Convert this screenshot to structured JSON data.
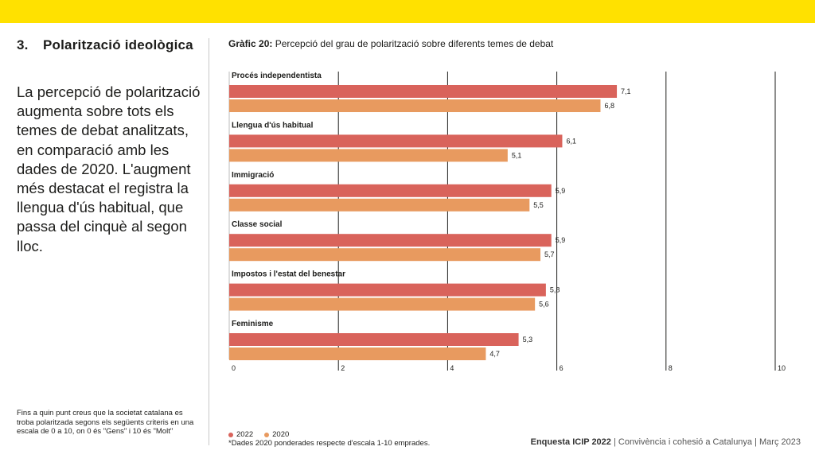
{
  "section": {
    "number": "3.",
    "title": "Polarització ideològica"
  },
  "lead_text": "La percepció de polarització augmenta sobre tots els temes de debat analitzats, en comparació amb les dades de 2020. L'augment més destacat el registra la llengua d'ús habitual, que passa del cinquè al segon lloc.",
  "footnote_question": "Fins a quin punt creus que la societat catalana es troba polaritzada segons els següents criteris en una escala de 0 a 10, on 0 és \"Gens\" i 10 és \"Molt\"",
  "chart_heading": {
    "label": "Gràfic 20:",
    "text": "Percepció del grau de polarització sobre diferents temes de debat"
  },
  "legend": [
    {
      "name": "2022",
      "color": "#d9635b"
    },
    {
      "name": "2020",
      "color": "#e89a5f"
    }
  ],
  "note_2020": "*Dades 2020 ponderades respecte d'escala 1-10 emprades.",
  "footer": {
    "brand": "Enquesta ICIP 2022",
    "rest": " | Convivència i cohesió a Catalunya | Març 2023"
  },
  "chart_data": {
    "type": "bar",
    "orientation": "horizontal",
    "categories": [
      "Procés independentista",
      "Llengua d'ús habitual",
      "Immigració",
      "Classe social",
      "Impostos i l'estat del benestar",
      "Feminisme"
    ],
    "series": [
      {
        "name": "2022",
        "values": [
          7.1,
          6.1,
          5.9,
          5.9,
          5.8,
          5.3
        ],
        "labels": [
          "7,1",
          "6,1",
          "5,9",
          "5,9",
          "5,8",
          "5,3"
        ],
        "color": "#d9635b"
      },
      {
        "name": "2020",
        "values": [
          6.8,
          5.1,
          5.5,
          5.7,
          5.6,
          4.7
        ],
        "labels": [
          "6,8",
          "5,1",
          "5,5",
          "5,7",
          "5,6",
          "4,7"
        ],
        "color": "#e89a5f"
      }
    ],
    "xticks": [
      "0",
      "2",
      "4",
      "6",
      "8",
      "10"
    ],
    "xlim": [
      0,
      10
    ],
    "grid": true
  }
}
